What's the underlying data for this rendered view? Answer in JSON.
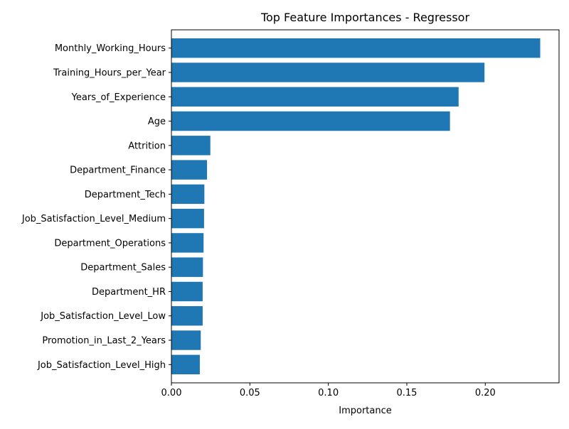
{
  "chart_data": {
    "type": "bar",
    "orientation": "horizontal",
    "title": "Top Feature Importances - Regressor",
    "xlabel": "Importance",
    "ylabel": "",
    "xlim": [
      0,
      0.247
    ],
    "xticks": [
      0.0,
      0.05,
      0.1,
      0.15,
      0.2
    ],
    "xtick_labels": [
      "0.00",
      "0.05",
      "0.10",
      "0.15",
      "0.20"
    ],
    "grid": false,
    "bar_color": "#1f77b4",
    "categories": [
      "Monthly_Working_Hours",
      "Training_Hours_per_Year",
      "Years_of_Experience",
      "Age",
      "Attrition",
      "Department_Finance",
      "Department_Tech",
      "Job_Satisfaction_Level_Medium",
      "Department_Operations",
      "Department_Sales",
      "Department_HR",
      "Job_Satisfaction_Level_Low",
      "Promotion_in_Last_2_Years",
      "Job_Satisfaction_Level_High"
    ],
    "values": [
      0.235,
      0.1995,
      0.183,
      0.1775,
      0.0248,
      0.0227,
      0.021,
      0.0208,
      0.0205,
      0.0201,
      0.0199,
      0.0199,
      0.0187,
      0.0181
    ]
  }
}
